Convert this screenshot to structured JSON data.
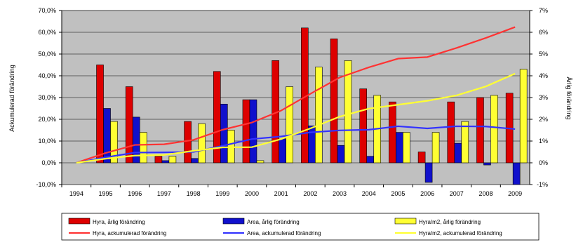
{
  "chart_data": {
    "type": "bar",
    "categories": [
      "1994",
      "1995",
      "1996",
      "1997",
      "1998",
      "1999",
      "2000",
      "2001",
      "2002",
      "2003",
      "2004",
      "2005",
      "2006",
      "2007",
      "2008",
      "2009"
    ],
    "ylabel_left": "Ackumulerad förändring",
    "ylabel_right": "Årlig förändring",
    "left_axis": {
      "ylim": [
        -10,
        70
      ],
      "ticks": [
        -10,
        0,
        10,
        20,
        30,
        40,
        50,
        60,
        70
      ],
      "tick_labels": [
        "-10,0%",
        "0,0%",
        "10,0%",
        "20,0%",
        "30,0%",
        "40,0%",
        "50,0%",
        "60,0%",
        "70,0%"
      ]
    },
    "right_axis": {
      "ylim": [
        -1,
        7
      ],
      "ticks": [
        -1,
        0,
        1,
        2,
        3,
        4,
        5,
        6,
        7
      ],
      "tick_labels": [
        "-1%",
        "0%",
        "1%",
        "2%",
        "3%",
        "4%",
        "5%",
        "6%",
        "7%"
      ]
    },
    "grid": true,
    "plot_background": "#c0c0c0",
    "legend_position": "bottom",
    "series": [
      {
        "name": "Hyra, årlig förändring",
        "kind": "bar",
        "axis": "right",
        "color": "#dd0000",
        "values": [
          0,
          4.5,
          3.5,
          0.3,
          1.9,
          4.2,
          2.9,
          4.7,
          6.2,
          5.7,
          3.4,
          2.8,
          0.5,
          2.8,
          3.0,
          3.2
        ]
      },
      {
        "name": "Area, årlig förändring",
        "kind": "bar",
        "axis": "right",
        "color": "#1010cc",
        "values": [
          0,
          2.5,
          2.1,
          0.1,
          0.2,
          2.7,
          2.9,
          1.1,
          1.7,
          0.8,
          0.3,
          1.4,
          -0.9,
          0.9,
          -0.1,
          -1.0
        ]
      },
      {
        "name": "Hyra/m2, årlig förändring",
        "kind": "bar",
        "axis": "right",
        "color": "#ffff33",
        "values": [
          0,
          1.9,
          1.4,
          0.3,
          1.8,
          1.5,
          0.1,
          3.5,
          4.4,
          4.7,
          3.1,
          1.4,
          1.4,
          1.9,
          3.1,
          4.3
        ]
      },
      {
        "name": "Hyra, ackumulerad förändring",
        "kind": "line",
        "axis": "left",
        "color": "#ff3333",
        "values": [
          0,
          4.5,
          8.2,
          8.5,
          10.5,
          15.2,
          18.5,
          24.0,
          31.7,
          39.2,
          43.9,
          47.9,
          48.6,
          52.8,
          57.4,
          62.4
        ]
      },
      {
        "name": "Area, ackumulerad förändring",
        "kind": "line",
        "axis": "left",
        "color": "#3333ff",
        "values": [
          0,
          2.5,
          4.7,
          4.8,
          5.0,
          7.8,
          10.9,
          12.1,
          14.0,
          14.9,
          15.2,
          16.8,
          15.8,
          16.8,
          16.7,
          15.5
        ]
      },
      {
        "name": "Hyra/m2, ackumulerad förändring",
        "kind": "line",
        "axis": "left",
        "color": "#ffff33",
        "values": [
          0,
          1.9,
          3.3,
          3.6,
          5.5,
          7.1,
          7.2,
          10.9,
          15.8,
          21.2,
          24.9,
          26.7,
          28.5,
          31.0,
          35.1,
          41.0
        ]
      }
    ]
  }
}
